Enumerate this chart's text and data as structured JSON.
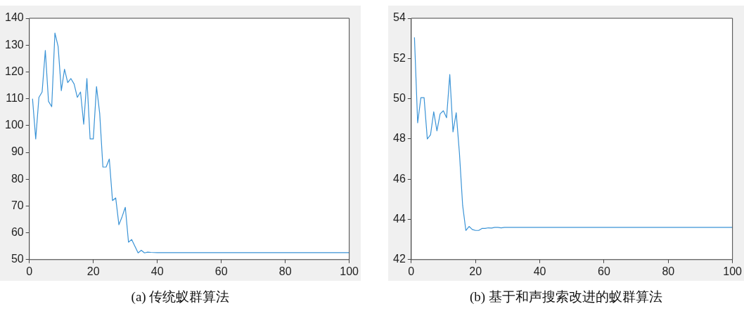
{
  "chart_data": [
    {
      "type": "line",
      "xlabel": "(a)  传统蚁群算法",
      "x": [
        1,
        2,
        3,
        4,
        5,
        6,
        7,
        8,
        9,
        10,
        11,
        12,
        13,
        14,
        15,
        16,
        17,
        18,
        19,
        20,
        21,
        22,
        23,
        24,
        25,
        26,
        27,
        28,
        29,
        30,
        31,
        32,
        33,
        34,
        35,
        36,
        37,
        38,
        40,
        100
      ],
      "series": [
        {
          "color": "#3a93d6",
          "values": [
            110,
            95,
            110.5,
            112.5,
            128,
            109,
            107,
            134.5,
            129.5,
            113,
            121,
            116,
            117.5,
            115.5,
            110.5,
            112.5,
            100.5,
            117.5,
            95,
            95,
            114.5,
            104.5,
            84.5,
            84.5,
            87.5,
            72,
            73,
            63,
            66,
            69.5,
            56.5,
            57.5,
            55,
            52.5,
            53.5,
            52.5,
            52.8,
            52.7,
            52.6,
            52.6
          ]
        }
      ],
      "xlim": [
        0,
        100
      ],
      "xticks": [
        0,
        20,
        40,
        60,
        80,
        100
      ],
      "ylim": [
        50,
        140
      ],
      "yticks": [
        50,
        60,
        70,
        80,
        90,
        100,
        110,
        120,
        130,
        140
      ],
      "grid": false,
      "legend": false,
      "marker": "none",
      "line_style": "solid"
    },
    {
      "type": "line",
      "xlabel": "(b)  基于和声搜索改进的蚁群算法",
      "x": [
        1,
        2,
        3,
        4,
        5,
        6,
        7,
        8,
        9,
        10,
        11,
        12,
        13,
        14,
        15,
        16,
        17,
        18,
        19,
        20,
        21,
        22,
        23,
        24,
        25,
        26,
        27,
        28,
        29,
        30,
        100
      ],
      "series": [
        {
          "color": "#3a93d6",
          "values": [
            53.05,
            48.8,
            50.05,
            50.05,
            48,
            48.2,
            49.35,
            48.4,
            49.25,
            49.4,
            49.05,
            51.2,
            48.35,
            49.3,
            47.3,
            44.7,
            43.45,
            43.65,
            43.5,
            43.45,
            43.45,
            43.55,
            43.55,
            43.58,
            43.57,
            43.6,
            43.6,
            43.58,
            43.6,
            43.6,
            43.6
          ]
        }
      ],
      "xlim": [
        0,
        100
      ],
      "xticks": [
        0,
        20,
        40,
        60,
        80,
        100
      ],
      "ylim": [
        42,
        54
      ],
      "yticks": [
        42,
        44,
        46,
        48,
        50,
        52,
        54
      ],
      "grid": false,
      "legend": false,
      "marker": "none",
      "line_style": "solid"
    }
  ]
}
